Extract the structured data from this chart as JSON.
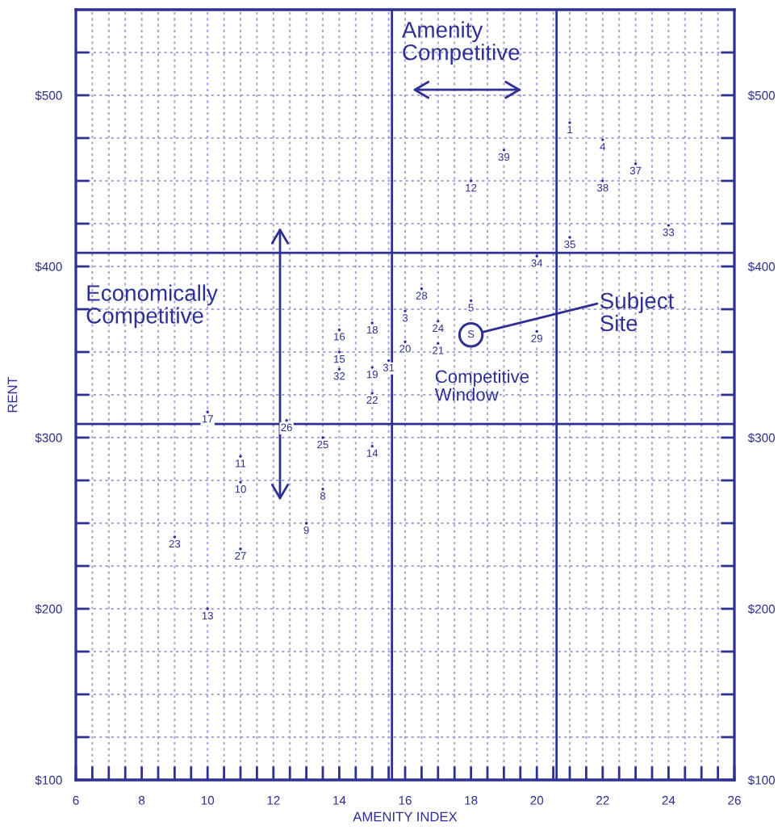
{
  "chart_data": {
    "type": "scatter",
    "xlabel": "AMENITY INDEX",
    "ylabel": "RENT",
    "xlim": [
      6,
      26
    ],
    "ylim": [
      100,
      550
    ],
    "y2lim": [
      100,
      550
    ],
    "xticks": [
      6,
      {
        "value": 6.5,
        "label": null
      },
      {
        "value": 7,
        "label": null
      },
      {
        "value": 7.5,
        "label": null
      },
      8,
      {
        "value": 8.5,
        "label": null
      },
      {
        "value": 9,
        "label": null
      },
      {
        "value": 9.5,
        "label": null
      },
      10,
      {
        "value": 10.5,
        "label": null
      },
      {
        "value": 11,
        "label": null
      },
      {
        "value": 11.5,
        "label": null
      },
      12,
      {
        "value": 12.5,
        "label": null
      },
      {
        "value": 13,
        "label": null
      },
      {
        "value": 13.5,
        "label": null
      },
      14,
      {
        "value": 14.5,
        "label": null
      },
      {
        "value": 15,
        "label": null
      },
      {
        "value": 15.5,
        "label": null
      },
      16,
      {
        "value": 16.5,
        "label": null
      },
      {
        "value": 17,
        "label": null
      },
      {
        "value": 17.5,
        "label": null
      },
      18,
      {
        "value": 18.5,
        "label": null
      },
      {
        "value": 19,
        "label": null
      },
      {
        "value": 19.5,
        "label": null
      },
      20,
      {
        "value": 20.5,
        "label": null
      },
      {
        "value": 21,
        "label": null
      },
      {
        "value": 21.5,
        "label": null
      },
      22,
      {
        "value": 22.5,
        "label": null
      },
      {
        "value": 23,
        "label": null
      },
      {
        "value": 23.5,
        "label": null
      },
      24,
      {
        "value": 24.5,
        "label": null
      },
      {
        "value": 25,
        "label": null
      },
      {
        "value": 25.5,
        "label": null
      },
      26
    ],
    "yticks": [
      {
        "value": 100,
        "label": "$100"
      },
      {
        "value": 125,
        "label": null
      },
      {
        "value": 150,
        "label": null
      },
      {
        "value": 175,
        "label": null
      },
      {
        "value": 200,
        "label": "$200"
      },
      {
        "value": 225,
        "label": null
      },
      {
        "value": 250,
        "label": null
      },
      {
        "value": 275,
        "label": null
      },
      {
        "value": 300,
        "label": "$300"
      },
      {
        "value": 325,
        "label": null
      },
      {
        "value": 350,
        "label": null
      },
      {
        "value": 375,
        "label": null
      },
      {
        "value": 400,
        "label": "$400"
      },
      {
        "value": 425,
        "label": null
      },
      {
        "value": 450,
        "label": null
      },
      {
        "value": 475,
        "label": null
      },
      {
        "value": 500,
        "label": "$500"
      },
      {
        "value": 525,
        "label": null
      }
    ],
    "y2ticks": [
      {
        "value": 100,
        "label": "$100"
      },
      {
        "value": 125,
        "label": null
      },
      {
        "value": 150,
        "label": null
      },
      {
        "value": 175,
        "label": null
      },
      {
        "value": 200,
        "label": "$200"
      },
      {
        "value": 225,
        "label": null
      },
      {
        "value": 250,
        "label": null
      },
      {
        "value": 275,
        "label": null
      },
      {
        "value": 300,
        "label": "$300"
      },
      {
        "value": 325,
        "label": null
      },
      {
        "value": 350,
        "label": null
      },
      {
        "value": 375,
        "label": null
      },
      {
        "value": 400,
        "label": "$400"
      },
      {
        "value": 425,
        "label": null
      },
      {
        "value": 450,
        "label": null
      },
      {
        "value": 475,
        "label": null
      },
      {
        "value": 500,
        "label": "$500"
      },
      {
        "value": 525,
        "label": null
      }
    ],
    "grid": true,
    "series": [
      {
        "color": "#2e3192",
        "marker": "circle",
        "x": [
          21,
          16,
          22,
          18,
          13.5,
          13,
          11,
          11,
          18,
          10,
          15,
          14,
          14,
          10,
          15,
          15,
          16,
          17,
          15,
          9,
          17,
          13.5,
          12.4,
          11,
          16.5,
          20,
          15.5,
          14,
          24,
          20,
          21,
          23,
          22,
          19
        ],
        "values": [
          484,
          374,
          474,
          380,
          270,
          250,
          274,
          289,
          450,
          200,
          295,
          350,
          363,
          315,
          367,
          341,
          356,
          355,
          326,
          242,
          368,
          300,
          310,
          235,
          387,
          362,
          345,
          340,
          424,
          406,
          417,
          460,
          450,
          468
        ]
      },
      {
        "color": "#2e3192",
        "marker": "circle",
        "x": [
          18
        ],
        "values": [
          360
        ]
      }
    ],
    "ref_lines": [
      {
        "axis": "x",
        "value": 15.6,
        "color": "#2e3192"
      },
      {
        "axis": "x",
        "value": 20.6,
        "color": "#2e3192"
      },
      {
        "axis": "y",
        "value": 408,
        "color": "#2e3192"
      },
      {
        "axis": "y",
        "value": 308,
        "color": "#2e3192"
      }
    ],
    "annotations": [
      "Amenity\nCompetitive",
      "Economically\nCompetitive",
      "Competitive\nWindow",
      {
        "text": "Subject\nSite",
        "x": 18,
        "y": 360
      },
      {
        "text": "S",
        "x": 18,
        "y": 360
      },
      {
        "text": "1",
        "x": 21,
        "y": 484
      },
      {
        "text": "3",
        "x": 16,
        "y": 374
      },
      {
        "text": "4",
        "x": 22,
        "y": 474
      },
      {
        "text": "5",
        "x": 18,
        "y": 380
      },
      {
        "text": "8",
        "x": 13.5,
        "y": 270
      },
      {
        "text": "9",
        "x": 13,
        "y": 250
      },
      {
        "text": "10",
        "x": 11,
        "y": 274
      },
      {
        "text": "11",
        "x": 11,
        "y": 289
      },
      {
        "text": "12",
        "x": 18,
        "y": 450
      },
      {
        "text": "13",
        "x": 10,
        "y": 200
      },
      {
        "text": "14",
        "x": 15,
        "y": 295
      },
      {
        "text": "15",
        "x": 14,
        "y": 350
      },
      {
        "text": "16",
        "x": 14,
        "y": 363
      },
      {
        "text": "17",
        "x": 10,
        "y": 315
      },
      {
        "text": "18",
        "x": 15,
        "y": 367
      },
      {
        "text": "19",
        "x": 15,
        "y": 341
      },
      {
        "text": "20",
        "x": 16,
        "y": 356
      },
      {
        "text": "21",
        "x": 17,
        "y": 355
      },
      {
        "text": "22",
        "x": 15,
        "y": 326
      },
      {
        "text": "23",
        "x": 9,
        "y": 242
      },
      {
        "text": "24",
        "x": 17,
        "y": 368
      },
      {
        "text": "25",
        "x": 13.5,
        "y": 300
      },
      {
        "text": "26",
        "x": 12.4,
        "y": 310
      },
      {
        "text": "27",
        "x": 11,
        "y": 235
      },
      {
        "text": "28",
        "x": 16.5,
        "y": 387
      },
      {
        "text": "29",
        "x": 20,
        "y": 362
      },
      {
        "text": "31",
        "x": 15.5,
        "y": 345
      },
      {
        "text": "32",
        "x": 14,
        "y": 340
      },
      {
        "text": "33",
        "x": 24,
        "y": 424
      },
      {
        "text": "34",
        "x": 20,
        "y": 406
      },
      {
        "text": "35",
        "x": 21,
        "y": 417
      },
      {
        "text": "37",
        "x": 23,
        "y": 460
      },
      {
        "text": "38",
        "x": 22,
        "y": 450
      },
      {
        "text": "39",
        "x": 19,
        "y": 468
      }
    ]
  }
}
